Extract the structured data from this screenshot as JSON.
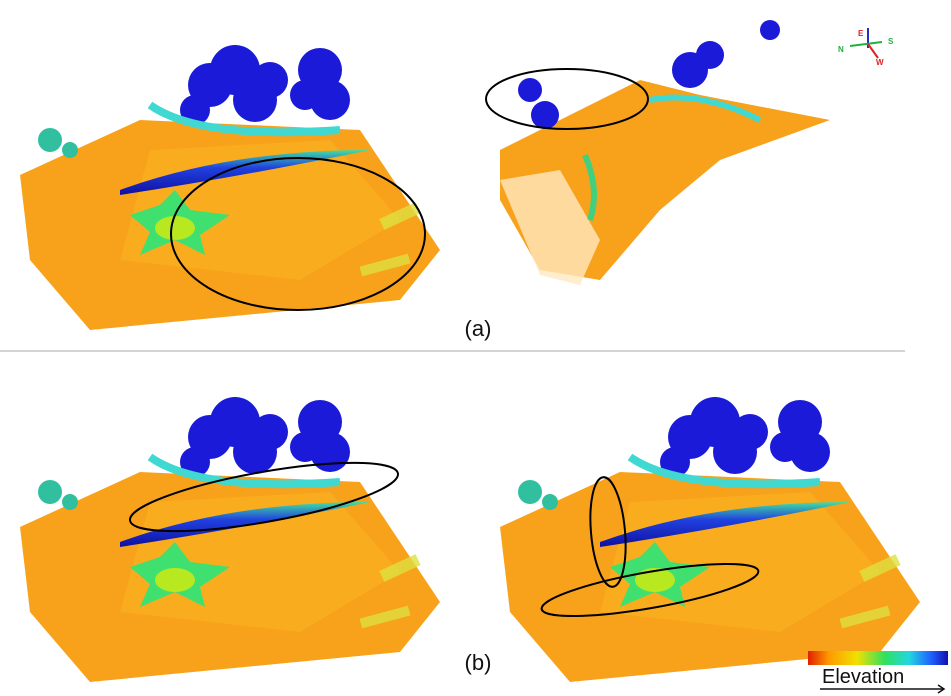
{
  "labels": {
    "a": "(a)",
    "b": "(b)"
  },
  "legend": {
    "title": "Elevation"
  },
  "compass": {
    "up": "E",
    "right": "S",
    "left": "N",
    "down": "W"
  }
}
